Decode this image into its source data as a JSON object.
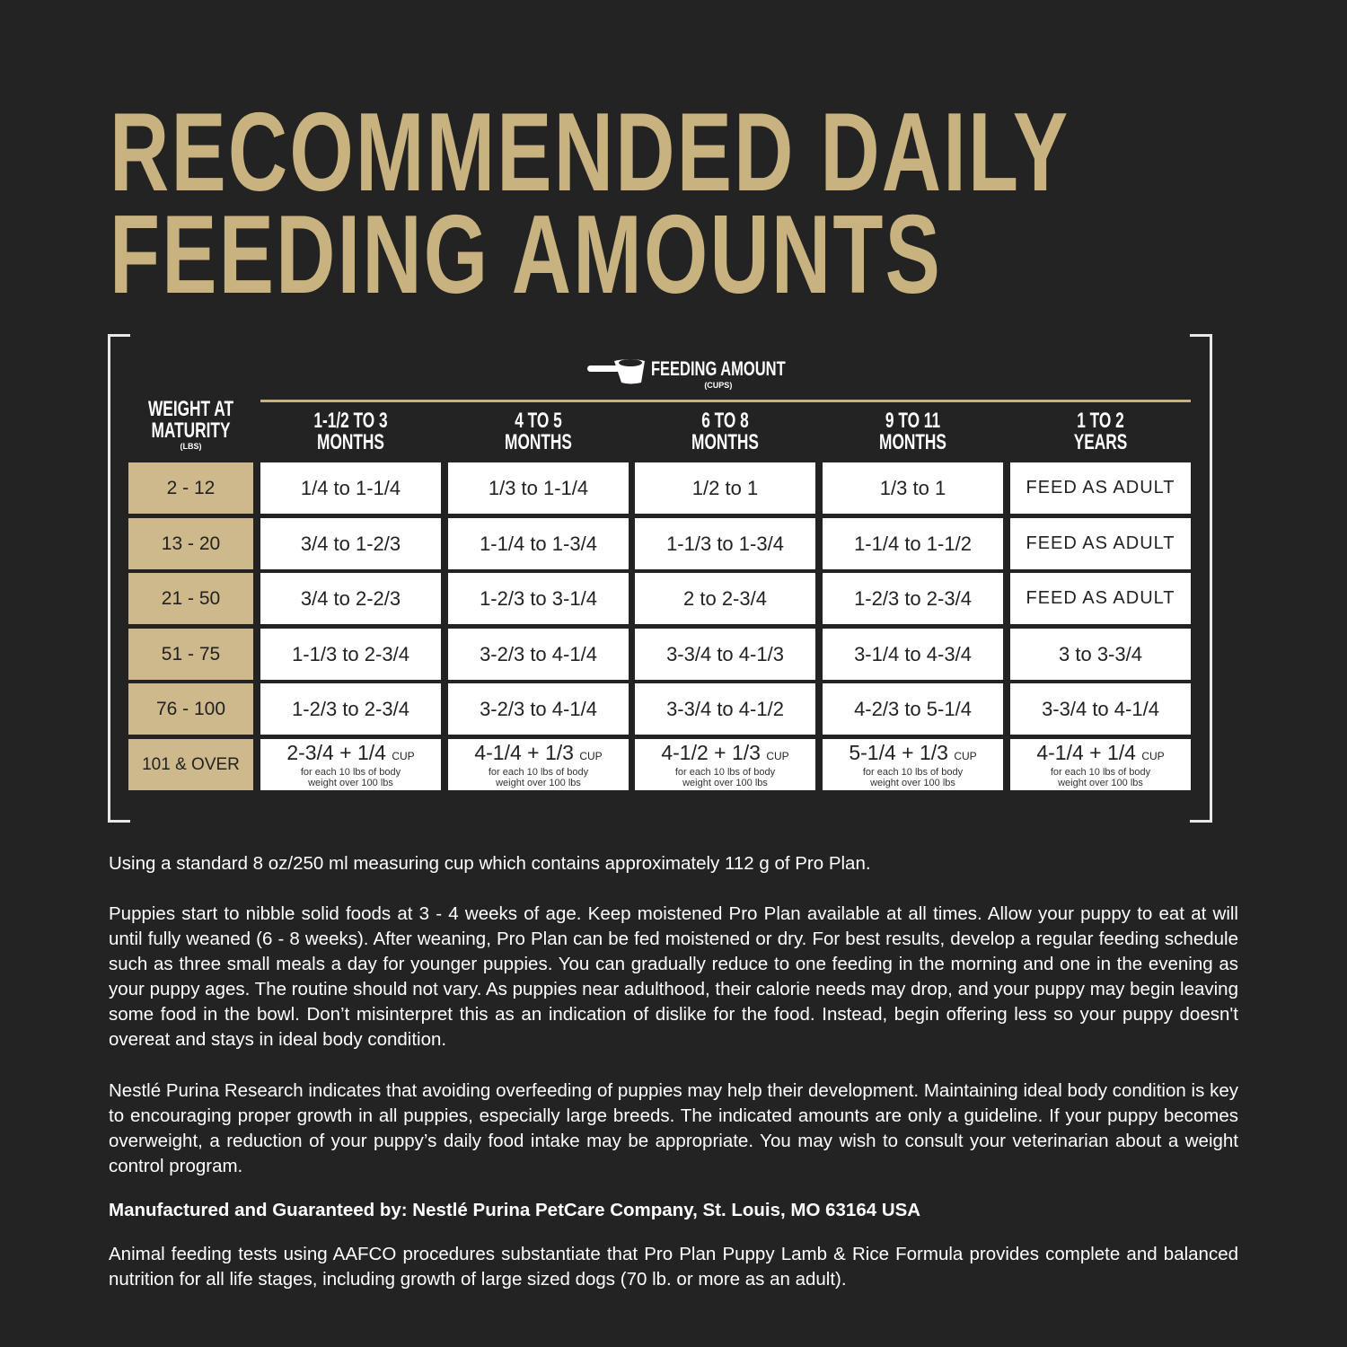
{
  "title": {
    "line1": "RECOMMENDED DAILY",
    "line2": "FEEDING AMOUNTS"
  },
  "table": {
    "feeding_amount_label": "FEEDING AMOUNT",
    "feeding_amount_unit": "(CUPS)",
    "icon": "measuring-cup-icon",
    "weight_header": {
      "line1": "WEIGHT AT",
      "line2": "MATURITY",
      "unit": "(LBS)"
    },
    "columns": [
      {
        "line1": "1-1/2 TO 3",
        "line2": "MONTHS"
      },
      {
        "line1": "4 TO 5",
        "line2": "MONTHS"
      },
      {
        "line1": "6 TO 8",
        "line2": "MONTHS"
      },
      {
        "line1": "9 TO 11",
        "line2": "MONTHS"
      },
      {
        "line1": "1 TO 2",
        "line2": "YEARS"
      }
    ],
    "rows": [
      {
        "weight": "2 - 12",
        "values": [
          "1/4 to 1-1/4",
          "1/3 to 1-1/4",
          "1/2 to 1",
          "1/3 to 1",
          "FEED AS ADULT"
        ]
      },
      {
        "weight": "13 - 20",
        "values": [
          "3/4 to 1-2/3",
          "1-1/4 to 1-3/4",
          "1-1/3 to 1-3/4",
          "1-1/4 to 1-1/2",
          "FEED AS ADULT"
        ]
      },
      {
        "weight": "21 - 50",
        "values": [
          "3/4 to 2-2/3",
          "1-2/3 to 3-1/4",
          "2 to 2-3/4",
          "1-2/3 to 2-3/4",
          "FEED AS ADULT"
        ]
      },
      {
        "weight": "51 - 75",
        "values": [
          "1-1/3 to 2-3/4",
          "3-2/3 to 4-1/4",
          "3-3/4 to 4-1/3",
          "3-1/4 to 4-3/4",
          "3 to 3-3/4"
        ]
      },
      {
        "weight": "76 - 100",
        "values": [
          "1-2/3 to 2-3/4",
          "3-2/3 to 4-1/4",
          "3-3/4 to 4-1/2",
          "4-2/3 to 5-1/4",
          "3-3/4 to 4-1/4"
        ]
      }
    ],
    "last_row": {
      "weight": "101 & OVER",
      "values": [
        "2-3/4 + 1/4",
        "4-1/4 + 1/3",
        "4-1/2 + 1/3",
        "5-1/4 + 1/3",
        "4-1/4 + 1/4"
      ],
      "unit": "CUP",
      "note_line1": "for each 10 lbs of body",
      "note_line2": "weight over 100 lbs"
    }
  },
  "text": {
    "p1": "Using a standard 8 oz/250 ml measuring cup which contains approximately 112 g of Pro Plan.",
    "p2": "Puppies start to nibble solid foods at 3 - 4 weeks of age. Keep moistened Pro Plan available at all times. Allow your puppy to eat at will until fully weaned (6 - 8 weeks). After weaning, Pro Plan can be fed moistened or dry. For best results, develop a regular feeding schedule such as three small meals a day for younger puppies. You can gradually reduce to one feeding in the morning and one in the evening as your puppy ages. The routine should not vary. As puppies near adulthood, their calorie needs may drop, and your puppy may begin leaving some food in the bowl. Don’t misinterpret this as an indication of dislike for the food. Instead, begin offering less so your puppy doesn't overeat and stays in ideal body condition.",
    "p3": "Nestlé Purina Research indicates that avoiding overfeeding of puppies may help their development. Maintaining ideal body condition is key to encouraging proper growth in all puppies, especially large breeds. The indicated amounts are only a guideline. If your puppy becomes overweight, a reduction of your puppy’s daily food intake may be appropriate. You may wish to consult your veterinarian about a weight control program.",
    "p4": "Manufactured and Guaranteed by: Nestlé Purina PetCare Company, St. Louis, MO 63164 USA",
    "p5": "Animal feeding tests using AAFCO procedures substantiate that Pro Plan Puppy Lamb & Rice Formula provides complete and balanced nutrition for all life stages, including growth of large sized dogs (70 lb. or more as an adult)."
  },
  "colors": {
    "background": "#232323",
    "gold": "#c8b27f",
    "weight_cell": "#cdb98b",
    "cell": "#ffffff"
  }
}
